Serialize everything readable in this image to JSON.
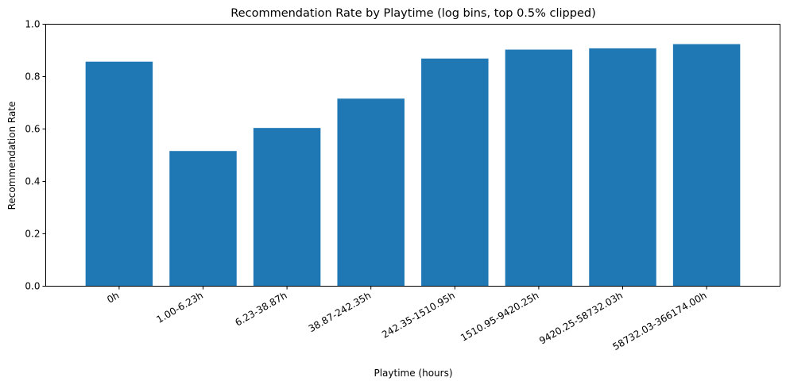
{
  "chart_data": {
    "type": "bar",
    "title": "Recommendation Rate by Playtime (log bins, top 0.5% clipped)",
    "xlabel": "Playtime (hours)",
    "ylabel": "Recommendation Rate",
    "categories": [
      "0h",
      "1.00-6.23h",
      "6.23-38.87h",
      "38.87-242.35h",
      "242.35-1510.95h",
      "1510.95-9420.25h",
      "9420.25-58732.03h",
      "58732.03-366174.00h"
    ],
    "values": [
      0.857,
      0.516,
      0.604,
      0.716,
      0.869,
      0.903,
      0.908,
      0.924
    ],
    "ylim": [
      0,
      1.0
    ],
    "yticks": [
      "0.0",
      "0.2",
      "0.4",
      "0.6",
      "0.8",
      "1.0"
    ],
    "grid": false,
    "bar_color": "#1f77b4"
  }
}
